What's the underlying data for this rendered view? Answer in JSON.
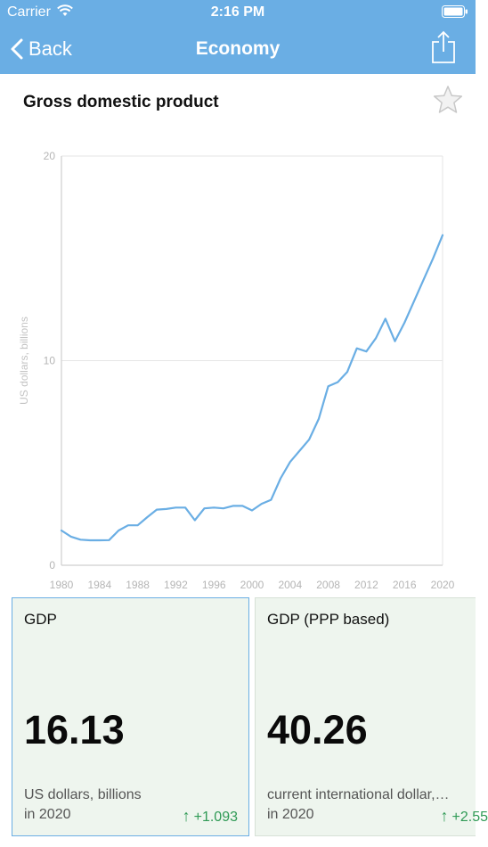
{
  "status_bar": {
    "carrier": "Carrier",
    "time": "2:16 PM"
  },
  "nav": {
    "back_label": "Back",
    "title": "Economy"
  },
  "page": {
    "title": "Gross domestic product"
  },
  "chart_data": {
    "type": "line",
    "title": "",
    "xlabel": "",
    "ylabel": "US dollars, billions",
    "xlim": [
      1980,
      2020
    ],
    "ylim": [
      0,
      20
    ],
    "grid": true,
    "x_ticks": [
      "1980",
      "1984",
      "1988",
      "1992",
      "1996",
      "2000",
      "2004",
      "2008",
      "2012",
      "2016",
      "2020"
    ],
    "y_ticks": [
      "0",
      "10",
      "20"
    ],
    "series": [
      {
        "color": "#6aaee4",
        "x": [
          1980,
          1981,
          1982,
          1983,
          1984,
          1985,
          1986,
          1987,
          1988,
          1989,
          1990,
          1991,
          1992,
          1993,
          1994,
          1995,
          1996,
          1997,
          1998,
          1999,
          2000,
          2001,
          2002,
          2003,
          2004,
          2005,
          2006,
          2007,
          2008,
          2009,
          2010,
          2011,
          2012,
          2013,
          2014,
          2015,
          2016,
          2017,
          2018,
          2019,
          2020
        ],
        "values": [
          1.7,
          1.4,
          1.25,
          1.22,
          1.22,
          1.23,
          1.7,
          1.95,
          1.95,
          2.35,
          2.72,
          2.75,
          2.82,
          2.82,
          2.2,
          2.78,
          2.82,
          2.78,
          2.9,
          2.9,
          2.68,
          3.0,
          3.2,
          4.25,
          5.05,
          5.6,
          6.15,
          7.15,
          8.75,
          8.95,
          9.45,
          10.6,
          10.45,
          11.1,
          12.05,
          10.95,
          11.85,
          12.9,
          13.95,
          15.0,
          16.13
        ]
      }
    ]
  },
  "cards": [
    {
      "label": "GDP",
      "value": "16.13",
      "unit": "US dollars, billions",
      "year": "in 2020",
      "change": "+1.093",
      "change_icon": "arrow-up-icon"
    },
    {
      "label": "GDP (PPP based)",
      "value": "40.26",
      "unit": "current international dollar,…",
      "year": "in 2020",
      "change": "+2.55",
      "change_icon": "arrow-up-icon"
    }
  ],
  "colors": {
    "accent": "#6aaee4",
    "positive": "#2f9a55",
    "card_bg": "#eef5ee"
  }
}
